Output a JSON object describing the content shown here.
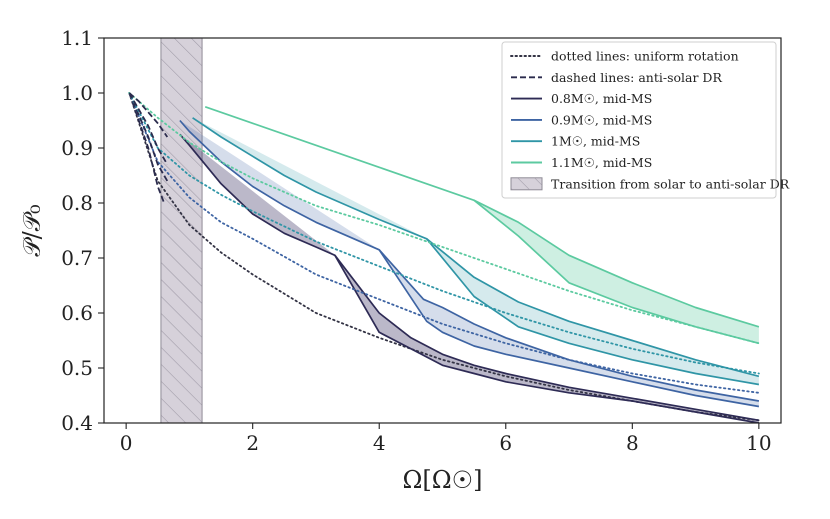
{
  "chart_data": {
    "type": "line",
    "title": "",
    "xlabel": "Ω[Ω☉]",
    "ylabel": "𝒫/𝒫₀",
    "xlim": [
      -0.35,
      10.35
    ],
    "ylim": [
      0.4,
      1.1
    ],
    "xticks": [
      0,
      2,
      4,
      6,
      8,
      10
    ],
    "yticks": [
      0.4,
      0.5,
      0.6,
      0.7,
      0.8,
      0.9,
      1.0,
      1.1
    ],
    "xtick_labels": [
      "0",
      "2",
      "4",
      "6",
      "8",
      "10"
    ],
    "ytick_labels": [
      "0.4",
      "0.5",
      "0.6",
      "0.7",
      "0.8",
      "0.9",
      "1.0",
      "1.1"
    ],
    "grid": false,
    "legend_position": "top-right",
    "transition_band": {
      "x": [
        0.55,
        1.2
      ],
      "color": "#d6d1da",
      "label": "Transition from solar to anti-solar DR"
    },
    "legend": [
      {
        "style": "dotted",
        "color": "#333344",
        "label": "dotted lines: uniform rotation"
      },
      {
        "style": "dashed",
        "color": "#2b2b4d",
        "label": "dashed lines: anti-solar DR"
      },
      {
        "style": "solid",
        "color": "#2e2b55",
        "label": "0.8M☉, mid-MS"
      },
      {
        "style": "solid",
        "color": "#3e64a3",
        "label": "0.9M☉, mid-MS"
      },
      {
        "style": "solid",
        "color": "#2f95a6",
        "label": "1M☉, mid-MS"
      },
      {
        "style": "solid",
        "color": "#5ccaa0",
        "label": "1.1M☉, mid-MS"
      },
      {
        "style": "hatch",
        "color": "#d6d1da",
        "label": "Transition from solar to anti-solar DR"
      }
    ],
    "series": [
      {
        "name": "0.8M☉, mid-MS",
        "color": "#2e2b55",
        "fill": "rgba(60,52,100,0.35)",
        "dotted": [
          [
            0.05,
            1.0
          ],
          [
            0.5,
            0.84
          ],
          [
            1,
            0.76
          ],
          [
            1.5,
            0.71
          ],
          [
            2,
            0.67
          ],
          [
            3,
            0.6
          ],
          [
            4,
            0.555
          ],
          [
            5,
            0.515
          ],
          [
            6,
            0.485
          ],
          [
            7,
            0.46
          ],
          [
            8,
            0.44
          ],
          [
            9,
            0.42
          ],
          [
            10,
            0.405
          ]
        ],
        "dashed": [
          [
            0.05,
            1.0
          ],
          [
            0.2,
            0.95
          ],
          [
            0.35,
            0.9
          ],
          [
            0.5,
            0.83
          ],
          [
            0.6,
            0.8
          ]
        ],
        "upper": [
          [
            0.85,
            0.925
          ],
          [
            1,
            0.905
          ],
          [
            1.5,
            0.835
          ],
          [
            2,
            0.78
          ],
          [
            2.5,
            0.745
          ],
          [
            3,
            0.72
          ],
          [
            3.3,
            0.705
          ],
          [
            4,
            0.6
          ],
          [
            4.5,
            0.555
          ],
          [
            5,
            0.525
          ],
          [
            5.5,
            0.505
          ],
          [
            6,
            0.49
          ],
          [
            7,
            0.465
          ],
          [
            8,
            0.445
          ],
          [
            9,
            0.425
          ],
          [
            10,
            0.405
          ]
        ],
        "lower": [
          [
            3.3,
            0.705
          ],
          [
            4,
            0.565
          ],
          [
            4.5,
            0.535
          ],
          [
            5,
            0.505
          ],
          [
            5.5,
            0.49
          ],
          [
            6,
            0.475
          ],
          [
            7,
            0.455
          ],
          [
            8,
            0.44
          ],
          [
            9,
            0.42
          ],
          [
            10,
            0.4
          ]
        ]
      },
      {
        "name": "0.9M☉, mid-MS",
        "color": "#3e64a3",
        "fill": "rgba(62,100,163,0.22)",
        "dotted": [
          [
            0.05,
            1.0
          ],
          [
            0.5,
            0.875
          ],
          [
            1,
            0.81
          ],
          [
            1.5,
            0.765
          ],
          [
            2,
            0.735
          ],
          [
            3,
            0.67
          ],
          [
            4,
            0.625
          ],
          [
            5,
            0.58
          ],
          [
            6,
            0.545
          ],
          [
            7,
            0.515
          ],
          [
            8,
            0.49
          ],
          [
            9,
            0.47
          ],
          [
            10,
            0.455
          ]
        ],
        "dashed": [
          [
            0.05,
            1.0
          ],
          [
            0.2,
            0.96
          ],
          [
            0.35,
            0.92
          ],
          [
            0.5,
            0.87
          ],
          [
            0.65,
            0.84
          ]
        ],
        "upper": [
          [
            0.85,
            0.95
          ],
          [
            1,
            0.93
          ],
          [
            1.5,
            0.875
          ],
          [
            2,
            0.83
          ],
          [
            2.5,
            0.795
          ],
          [
            3,
            0.765
          ],
          [
            4,
            0.715
          ],
          [
            4.7,
            0.625
          ],
          [
            5,
            0.61
          ],
          [
            5.5,
            0.58
          ],
          [
            6,
            0.555
          ],
          [
            7,
            0.515
          ],
          [
            8,
            0.485
          ],
          [
            9,
            0.46
          ],
          [
            10,
            0.44
          ]
        ],
        "lower": [
          [
            4,
            0.715
          ],
          [
            4.75,
            0.585
          ],
          [
            5,
            0.565
          ],
          [
            5.5,
            0.54
          ],
          [
            6,
            0.525
          ],
          [
            7,
            0.5
          ],
          [
            8,
            0.475
          ],
          [
            9,
            0.45
          ],
          [
            10,
            0.43
          ]
        ]
      },
      {
        "name": "1M☉, mid-MS",
        "color": "#2f95a6",
        "fill": "rgba(47,149,166,0.2)",
        "dotted": [
          [
            0.05,
            1.0
          ],
          [
            0.5,
            0.9
          ],
          [
            1,
            0.85
          ],
          [
            1.5,
            0.815
          ],
          [
            2,
            0.785
          ],
          [
            3,
            0.73
          ],
          [
            4,
            0.685
          ],
          [
            5,
            0.64
          ],
          [
            6,
            0.6
          ],
          [
            7,
            0.565
          ],
          [
            8,
            0.535
          ],
          [
            9,
            0.51
          ],
          [
            10,
            0.49
          ]
        ],
        "dashed": [
          [
            0.05,
            1.0
          ],
          [
            0.2,
            0.97
          ],
          [
            0.35,
            0.94
          ],
          [
            0.5,
            0.9
          ],
          [
            0.65,
            0.87
          ]
        ],
        "upper": [
          [
            1.05,
            0.955
          ],
          [
            1.5,
            0.92
          ],
          [
            2,
            0.885
          ],
          [
            2.5,
            0.85
          ],
          [
            3,
            0.82
          ],
          [
            4,
            0.77
          ],
          [
            4.75,
            0.735
          ],
          [
            5.5,
            0.665
          ],
          [
            6.2,
            0.62
          ],
          [
            7,
            0.585
          ],
          [
            8,
            0.55
          ],
          [
            9,
            0.515
          ],
          [
            10,
            0.485
          ]
        ],
        "lower": [
          [
            4.75,
            0.735
          ],
          [
            5.5,
            0.63
          ],
          [
            6.2,
            0.575
          ],
          [
            7,
            0.545
          ],
          [
            8,
            0.515
          ],
          [
            9,
            0.49
          ],
          [
            10,
            0.47
          ]
        ]
      },
      {
        "name": "1.1M☉, mid-MS",
        "color": "#5ccaa0",
        "fill": "rgba(92,202,160,0.3)",
        "dotted": [
          [
            0.05,
            1.0
          ],
          [
            0.5,
            0.955
          ],
          [
            1,
            0.91
          ],
          [
            1.5,
            0.875
          ],
          [
            2,
            0.845
          ],
          [
            3,
            0.795
          ],
          [
            4,
            0.76
          ],
          [
            5,
            0.72
          ],
          [
            6,
            0.68
          ],
          [
            7,
            0.64
          ],
          [
            8,
            0.605
          ],
          [
            9,
            0.575
          ],
          [
            10,
            0.545
          ]
        ],
        "dashed": [
          [
            0.05,
            1.0
          ],
          [
            0.2,
            0.985
          ],
          [
            0.35,
            0.965
          ],
          [
            0.5,
            0.945
          ],
          [
            0.65,
            0.92
          ]
        ],
        "upper": [
          [
            1.25,
            0.975
          ],
          [
            2,
            0.945
          ],
          [
            3,
            0.905
          ],
          [
            4,
            0.865
          ],
          [
            5,
            0.825
          ],
          [
            5.5,
            0.805
          ],
          [
            6.2,
            0.765
          ],
          [
            7,
            0.705
          ],
          [
            8,
            0.655
          ],
          [
            9,
            0.61
          ],
          [
            10,
            0.575
          ]
        ],
        "lower": [
          [
            5.5,
            0.805
          ],
          [
            6.2,
            0.74
          ],
          [
            7,
            0.655
          ],
          [
            8,
            0.61
          ],
          [
            9,
            0.575
          ],
          [
            10,
            0.545
          ]
        ]
      }
    ]
  }
}
